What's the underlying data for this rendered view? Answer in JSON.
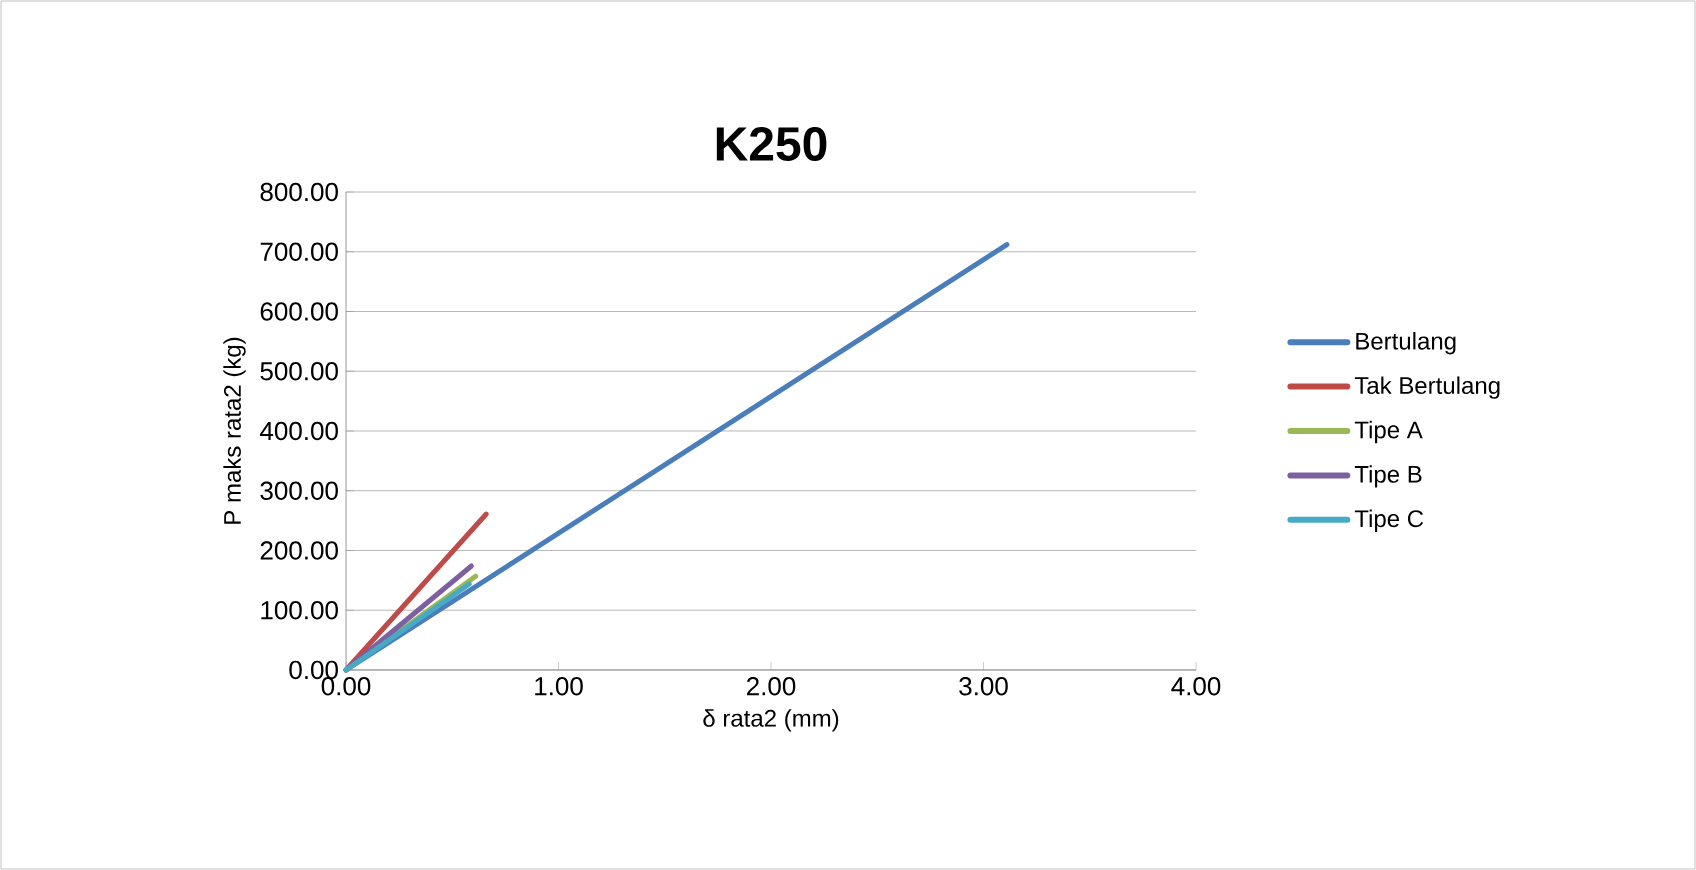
{
  "chart_data": {
    "type": "line",
    "title": "K250",
    "xlabel": "δ rata2 (mm)",
    "ylabel": "P maks rata2 (kg)",
    "xlim": [
      0,
      4
    ],
    "xticks": [
      {
        "value": 0,
        "label": "0.00"
      },
      {
        "value": 1,
        "label": "1.00"
      },
      {
        "value": 2,
        "label": "2.00"
      },
      {
        "value": 3,
        "label": "3.00"
      },
      {
        "value": 4,
        "label": "4.00"
      }
    ],
    "ylim": [
      0,
      800
    ],
    "yticks": [
      {
        "value": 0,
        "label": "0.00"
      },
      {
        "value": 100,
        "label": "100.00"
      },
      {
        "value": 200,
        "label": "200.00"
      },
      {
        "value": 300,
        "label": "300.00"
      },
      {
        "value": 400,
        "label": "400.00"
      },
      {
        "value": 500,
        "label": "500.00"
      },
      {
        "value": 600,
        "label": "600.00"
      },
      {
        "value": 700,
        "label": "700.00"
      },
      {
        "value": 800,
        "label": "800.00"
      }
    ],
    "grid": "y",
    "legend": "right",
    "marker": "none",
    "series": [
      {
        "name": "Bertulang",
        "color": "#4a7ebb",
        "x": [
          0,
          3.11
        ],
        "values": [
          0,
          712
        ]
      },
      {
        "name": "Tak Bertulang",
        "color": "#be4b48",
        "x": [
          0,
          0.66
        ],
        "values": [
          0,
          261
        ]
      },
      {
        "name": "Tipe A",
        "color": "#98b954",
        "x": [
          0,
          0.61
        ],
        "values": [
          0,
          157
        ]
      },
      {
        "name": "Tipe B",
        "color": "#7d60a0",
        "x": [
          0,
          0.59
        ],
        "values": [
          0,
          174
        ]
      },
      {
        "name": "Tipe C",
        "color": "#46aac5",
        "x": [
          0,
          0.58
        ],
        "values": [
          0,
          144
        ]
      }
    ]
  }
}
